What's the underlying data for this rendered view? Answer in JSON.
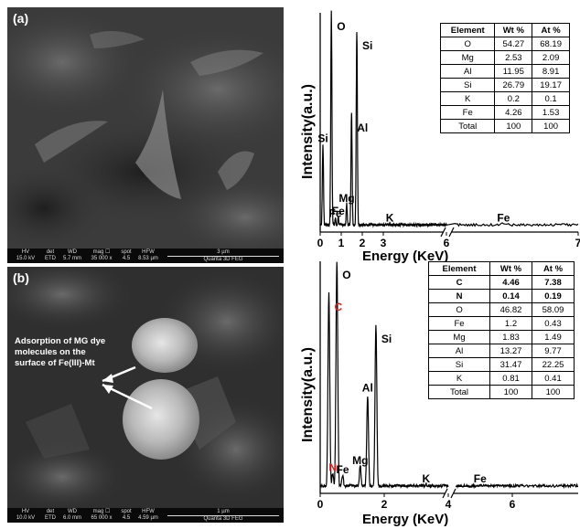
{
  "panels": [
    {
      "label": "(a)",
      "sem_bar": {
        "cols": [
          {
            "h": "HV",
            "v": "15.0 kV"
          },
          {
            "h": "det",
            "v": "ETD"
          },
          {
            "h": "WD",
            "v": "5.7 mm"
          },
          {
            "h": "mag ☐",
            "v": "35 000 x"
          },
          {
            "h": "spot",
            "v": "4.5"
          },
          {
            "h": "HFW",
            "v": "8.53 µm"
          }
        ],
        "scale": "3 µm",
        "instrument": "Quanta 3D FEG"
      },
      "annotation": "",
      "table": {
        "headers": [
          "Element",
          "Wt %",
          "At %"
        ],
        "rows": [
          [
            "O",
            "54.27",
            "68.19"
          ],
          [
            "Mg",
            "2.53",
            "2.09"
          ],
          [
            "Al",
            "11.95",
            "8.91"
          ],
          [
            "Si",
            "26.79",
            "19.17"
          ],
          [
            "K",
            "0.2",
            "0.1"
          ],
          [
            "Fe",
            "4.26",
            "1.53"
          ],
          [
            "Total",
            "100",
            "100"
          ]
        ],
        "bold_rows": []
      }
    },
    {
      "label": "(b)",
      "sem_bar": {
        "cols": [
          {
            "h": "HV",
            "v": "10.0 kV"
          },
          {
            "h": "det",
            "v": "ETD"
          },
          {
            "h": "WD",
            "v": "6.0 mm"
          },
          {
            "h": "mag ☐",
            "v": "65 000 x"
          },
          {
            "h": "spot",
            "v": "4.5"
          },
          {
            "h": "HFW",
            "v": "4.59 µm"
          }
        ],
        "scale": "1 µm",
        "instrument": "Quanta 3D FEG"
      },
      "annotation": "Adsorption of MG dye molecules on the surface of Fe(III)-Mt",
      "table": {
        "headers": [
          "Element",
          "Wt %",
          "At %"
        ],
        "rows": [
          [
            "C",
            "4.46",
            "7.38"
          ],
          [
            "N",
            "0.14",
            "0.19"
          ],
          [
            "O",
            "46.82",
            "58.09"
          ],
          [
            "Fe",
            "1.2",
            "0.43"
          ],
          [
            "Mg",
            "1.83",
            "1.49"
          ],
          [
            "Al",
            "13.27",
            "9.77"
          ],
          [
            "Si",
            "31.47",
            "22.25"
          ],
          [
            "K",
            "0.81",
            "0.41"
          ],
          [
            "Total",
            "100",
            "100"
          ]
        ],
        "bold_rows": [
          0,
          1
        ]
      }
    }
  ],
  "chart_data": [
    {
      "type": "line",
      "xlabel": "Energy (KeV)",
      "ylabel": "Intensity(a.u.)",
      "xlim_left": [
        0,
        6
      ],
      "xlim_right": [
        6,
        7
      ],
      "axis_break": 6,
      "xticks": [
        {
          "v": 0,
          "label": "0"
        },
        {
          "v": 1,
          "label": "1"
        },
        {
          "v": 2,
          "label": "2"
        },
        {
          "v": 3,
          "label": "3"
        },
        {
          "v": 6,
          "label": "6"
        },
        {
          "v": 7,
          "label": "7"
        }
      ],
      "peaks": [
        {
          "label": "Si",
          "x": 0.13,
          "y": 0.38,
          "color": "#000000"
        },
        {
          "label": "Fe",
          "x": 0.72,
          "y": 0.04,
          "color": "#000000"
        },
        {
          "label": "O",
          "x": 0.53,
          "y": 1.0,
          "color": "#000000"
        },
        {
          "label": "Fe",
          "x": 0.86,
          "y": 0.05,
          "color": "#000000"
        },
        {
          "label": "Mg",
          "x": 1.26,
          "y": 0.11,
          "color": "#000000"
        },
        {
          "label": "Al",
          "x": 1.49,
          "y": 0.53,
          "color": "#000000"
        },
        {
          "label": "Si",
          "x": 1.74,
          "y": 0.91,
          "color": "#000000"
        },
        {
          "label": "K",
          "x": 3.31,
          "y": 0.02,
          "color": "#000000"
        },
        {
          "label": "Fe",
          "x": 6.4,
          "y": 0.02,
          "color": "#000000"
        }
      ]
    },
    {
      "type": "line",
      "xlabel": "Energy (KeV)",
      "ylabel": "Intensity(a.u.)",
      "xlim_left": [
        0,
        4
      ],
      "xlim_right": [
        6,
        8
      ],
      "axis_break": 6,
      "xticks": [
        {
          "v": 0,
          "label": "0"
        },
        {
          "v": 2,
          "label": "2"
        },
        {
          "v": 4,
          "label": "4"
        },
        {
          "v": 6,
          "label": "6"
        }
      ],
      "peaks": [
        {
          "label": "C",
          "x": 0.27,
          "y": 0.86,
          "color": "#e02020"
        },
        {
          "label": "N",
          "x": 0.39,
          "y": 0.07,
          "color": "#e02020"
        },
        {
          "label": "O",
          "x": 0.52,
          "y": 1.0,
          "color": "#000000"
        },
        {
          "label": "Fe",
          "x": 0.7,
          "y": 0.06,
          "color": "#000000"
        },
        {
          "label": "Mg",
          "x": 1.25,
          "y": 0.1,
          "color": "#000000"
        },
        {
          "label": "Al",
          "x": 1.48,
          "y": 0.41,
          "color": "#000000"
        },
        {
          "label": "Si",
          "x": 1.74,
          "y": 0.72,
          "color": "#000000"
        },
        {
          "label": "K",
          "x": 3.31,
          "y": 0.02,
          "color": "#000000"
        },
        {
          "label": "Fe",
          "x": 6.4,
          "y": 0.02,
          "color": "#000000"
        }
      ]
    }
  ]
}
